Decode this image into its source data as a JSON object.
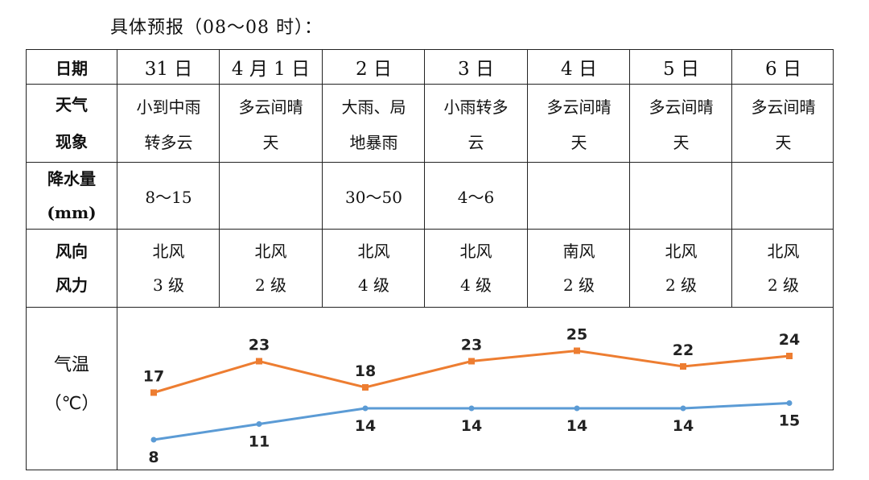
{
  "title": "具体预报（08～08 时）：",
  "row_labels": {
    "date": "日期",
    "weather_1": "天气",
    "weather_2": "现象",
    "precip_1": "降水量",
    "precip_2": "(mm)",
    "wind_1": "风向",
    "wind_2": "风力",
    "temp_1": "气温",
    "temp_2": "（℃）"
  },
  "days": [
    {
      "date": "31 日",
      "weather": [
        "小到中雨",
        "转多云"
      ],
      "precip": "8～15",
      "wind_dir": "北风",
      "wind_level": "3 级"
    },
    {
      "date": "4 月 1 日",
      "weather": [
        "多云间晴",
        "天"
      ],
      "precip": "",
      "wind_dir": "北风",
      "wind_level": "2 级"
    },
    {
      "date": "2 日",
      "weather": [
        "大雨、局",
        "地暴雨"
      ],
      "precip": "30～50",
      "wind_dir": "北风",
      "wind_level": "4 级"
    },
    {
      "date": "3 日",
      "weather": [
        "小雨转多",
        "云"
      ],
      "precip": "4～6",
      "wind_dir": "北风",
      "wind_level": "4 级"
    },
    {
      "date": "4 日",
      "weather": [
        "多云间晴",
        "天"
      ],
      "precip": "",
      "wind_dir": "南风",
      "wind_level": "2 级"
    },
    {
      "date": "5 日",
      "weather": [
        "多云间晴",
        "天"
      ],
      "precip": "",
      "wind_dir": "北风",
      "wind_level": "2 级"
    },
    {
      "date": "6 日",
      "weather": [
        "多云间晴",
        "天"
      ],
      "precip": "",
      "wind_dir": "北风",
      "wind_level": "2 级"
    }
  ],
  "chart_data": {
    "type": "line",
    "categories": [
      "31 日",
      "4 月 1 日",
      "2 日",
      "3 日",
      "4 日",
      "5 日",
      "6 日"
    ],
    "series": [
      {
        "values": [
          17,
          23,
          18,
          23,
          25,
          22,
          24
        ],
        "color": "#ED7D31",
        "marker": "square"
      },
      {
        "values": [
          8,
          11,
          14,
          14,
          14,
          14,
          15
        ],
        "color": "#5B9BD5",
        "marker": "circle"
      }
    ],
    "ylim": [
      5,
      30
    ]
  }
}
